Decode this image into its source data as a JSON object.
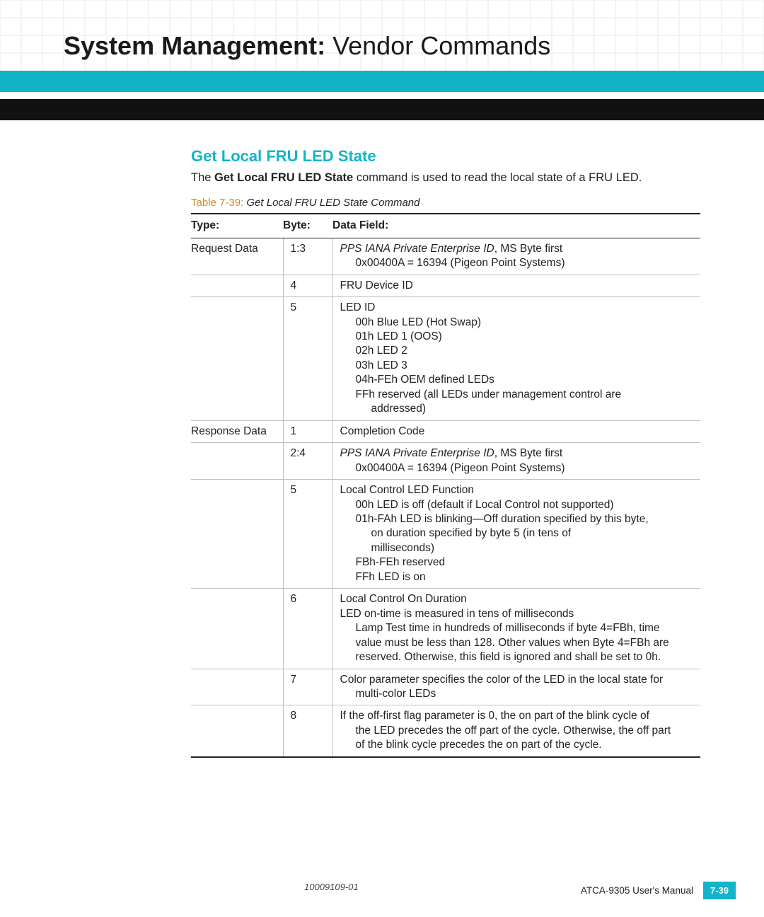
{
  "header": {
    "title_bold": "System Management:",
    "title_light": "  Vendor Commands",
    "bar_color": "#12b4c9"
  },
  "section": {
    "heading": "Get Local FRU LED State",
    "intro_pre": "The ",
    "intro_bold": "Get Local FRU LED State",
    "intro_post": " command is used to read the local state of a FRU LED.",
    "table_caption_label": "Table 7-39:",
    "table_caption_text": "  Get Local FRU LED State Command"
  },
  "table": {
    "columns": {
      "c1": "Type:",
      "c2": "Byte:",
      "c3": "Data Field:"
    },
    "rows": [
      {
        "type": "Request Data",
        "byte": "1:3",
        "data": [
          {
            "kind": "line-ital-then",
            "ital": "PPS IANA Private Enterprise ID",
            "rest": ", MS Byte first"
          },
          {
            "kind": "indent",
            "text": "0x00400A = 16394 (Pigeon Point Systems)"
          }
        ]
      },
      {
        "type": "",
        "byte": "4",
        "data": [
          {
            "kind": "line",
            "text": "FRU Device ID"
          }
        ]
      },
      {
        "type": "",
        "byte": "5",
        "data": [
          {
            "kind": "line",
            "text": "LED ID"
          },
          {
            "kind": "indent",
            "text": "00h Blue LED (Hot Swap)"
          },
          {
            "kind": "indent",
            "text": "01h LED 1 (OOS)"
          },
          {
            "kind": "indent",
            "text": "02h LED 2"
          },
          {
            "kind": "indent",
            "text": "03h LED 3"
          },
          {
            "kind": "indent",
            "text": "04h-FEh OEM defined LEDs"
          },
          {
            "kind": "indent",
            "text": "FFh reserved (all LEDs under management control are"
          },
          {
            "kind": "indent2",
            "text": "addressed)"
          }
        ]
      },
      {
        "type": "Response Data",
        "byte": "1",
        "data": [
          {
            "kind": "line",
            "text": "Completion Code"
          }
        ]
      },
      {
        "type": "",
        "byte": "2:4",
        "data": [
          {
            "kind": "line-ital-then",
            "ital": "PPS IANA Private Enterprise ID",
            "rest": ", MS Byte first"
          },
          {
            "kind": "indent",
            "text": "0x00400A = 16394 (Pigeon Point Systems)"
          }
        ]
      },
      {
        "type": "",
        "byte": "5",
        "data": [
          {
            "kind": "line",
            "text": "Local Control LED Function"
          },
          {
            "kind": "indent",
            "text": "00h LED is off (default if Local Control not supported)"
          },
          {
            "kind": "indent",
            "text": "01h-FAh LED is blinking—Off duration specified by this byte,"
          },
          {
            "kind": "indent2",
            "text": "on duration specified by byte 5 (in tens of"
          },
          {
            "kind": "indent2",
            "text": "milliseconds)"
          },
          {
            "kind": "indent",
            "text": "FBh-FEh reserved"
          },
          {
            "kind": "indent",
            "text": "FFh LED is on"
          }
        ]
      },
      {
        "type": "",
        "byte": "6",
        "data": [
          {
            "kind": "line",
            "text": "Local Control On Duration"
          },
          {
            "kind": "line",
            "text": "LED on-time is measured in tens of milliseconds"
          },
          {
            "kind": "indent",
            "text": "Lamp Test time in hundreds of milliseconds if byte 4=FBh, time"
          },
          {
            "kind": "indent",
            "text": "value must be less than 128. Other values when Byte 4=FBh are"
          },
          {
            "kind": "indent",
            "text": "reserved. Otherwise, this field is ignored and shall be set to 0h."
          }
        ]
      },
      {
        "type": "",
        "byte": "7",
        "data": [
          {
            "kind": "line",
            "text": "Color parameter specifies the color of the LED in the local state for"
          },
          {
            "kind": "indent",
            "text": "multi-color LEDs"
          }
        ]
      },
      {
        "type": "",
        "byte": "8",
        "data": [
          {
            "kind": "line",
            "text": "If the off-first flag parameter is 0, the on part of the blink cycle of"
          },
          {
            "kind": "indent",
            "text": "the LED precedes the off part of the cycle. Otherwise, the off part"
          },
          {
            "kind": "indent",
            "text": "of the blink cycle precedes the on part of the cycle."
          }
        ]
      }
    ]
  },
  "footer": {
    "doc_id": "10009109-01",
    "manual": "ATCA-9305 User's Manual",
    "page": "7-39"
  }
}
